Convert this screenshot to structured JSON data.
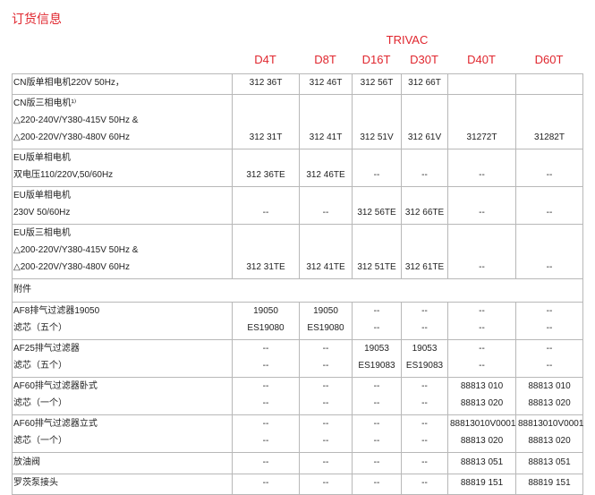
{
  "title": "订货信息",
  "brand": "TRIVAC",
  "models": [
    "D4T",
    "D8T",
    "D16T",
    "D30T",
    "D40T",
    "D60T"
  ],
  "section_accessories": "附件",
  "colors": {
    "accent": "#e0262e",
    "border": "#b8b8b8"
  },
  "rows": [
    {
      "label": [
        "CN版单相电机220V  50Hz，"
      ],
      "cells": [
        [
          "312 36T"
        ],
        [
          "312 46T"
        ],
        [
          "312 56T"
        ],
        [
          "312 66T"
        ],
        [
          ""
        ],
        [
          ""
        ]
      ]
    },
    {
      "label": [
        "CN版三相电机¹⁾",
        "△220-240V/Y380-415V 50Hz &",
        "△200-220V/Y380-480V 60Hz"
      ],
      "cells": [
        [
          "312 31T"
        ],
        [
          "312 41T"
        ],
        [
          "312 51V"
        ],
        [
          "312 61V"
        ],
        [
          "31272T"
        ],
        [
          "31282T"
        ]
      ]
    },
    {
      "label": [
        "EU版单相电机",
        "双电压110/220V,50/60Hz"
      ],
      "cells": [
        [
          "312 36TE"
        ],
        [
          "312 46TE"
        ],
        [
          "--"
        ],
        [
          "--"
        ],
        [
          "--"
        ],
        [
          "--"
        ]
      ]
    },
    {
      "label": [
        "EU版单相电机",
        "230V   50/60Hz"
      ],
      "cells": [
        [
          "--"
        ],
        [
          "--"
        ],
        [
          "312 56TE"
        ],
        [
          "312 66TE"
        ],
        [
          "--"
        ],
        [
          "--"
        ]
      ]
    },
    {
      "label": [
        "EU版三相电机",
        "△200-220V/Y380-415V 50Hz &",
        "△200-220V/Y380-480V 60Hz"
      ],
      "cells": [
        [
          "312 31TE"
        ],
        [
          "312 41TE"
        ],
        [
          "312 51TE"
        ],
        [
          "312 61TE"
        ],
        [
          "--"
        ],
        [
          "--"
        ]
      ]
    }
  ],
  "accessories": [
    {
      "label": [
        "AF8排气过滤器19050",
        "滤芯（五个）"
      ],
      "cells": [
        [
          "19050",
          "ES19080"
        ],
        [
          "19050",
          "ES19080"
        ],
        [
          "--",
          "--"
        ],
        [
          "--",
          "--"
        ],
        [
          "--",
          "--"
        ],
        [
          "--",
          "--"
        ]
      ]
    },
    {
      "label": [
        "AF25排气过滤器",
        "滤芯（五个）"
      ],
      "cells": [
        [
          "--",
          "--"
        ],
        [
          "--",
          "--"
        ],
        [
          "19053",
          "ES19083"
        ],
        [
          "19053",
          "ES19083"
        ],
        [
          "--",
          "--"
        ],
        [
          "--",
          "--"
        ]
      ]
    },
    {
      "label": [
        "AF60排气过滤器卧式",
        "滤芯（一个）"
      ],
      "cells": [
        [
          "--",
          "--"
        ],
        [
          "--",
          "--"
        ],
        [
          "--",
          "--"
        ],
        [
          "--",
          "--"
        ],
        [
          "88813 010",
          "88813 020"
        ],
        [
          "88813 010",
          "88813 020"
        ]
      ]
    },
    {
      "label": [
        "AF60排气过滤器立式",
        "滤芯（一个）"
      ],
      "cells": [
        [
          "--",
          "--"
        ],
        [
          "--",
          "--"
        ],
        [
          "--",
          "--"
        ],
        [
          "--",
          "--"
        ],
        [
          "88813010V0001",
          "88813 020"
        ],
        [
          "88813010V0001",
          "88813 020"
        ]
      ]
    },
    {
      "label": [
        "放油阀"
      ],
      "cells": [
        [
          "--"
        ],
        [
          "--"
        ],
        [
          "--"
        ],
        [
          "--"
        ],
        [
          "88813 051"
        ],
        [
          "88813 051"
        ]
      ]
    },
    {
      "label": [
        "罗茨泵接头"
      ],
      "cells": [
        [
          "--"
        ],
        [
          "--"
        ],
        [
          "--"
        ],
        [
          "--"
        ],
        [
          "88819 151"
        ],
        [
          "88819 151"
        ]
      ]
    }
  ]
}
